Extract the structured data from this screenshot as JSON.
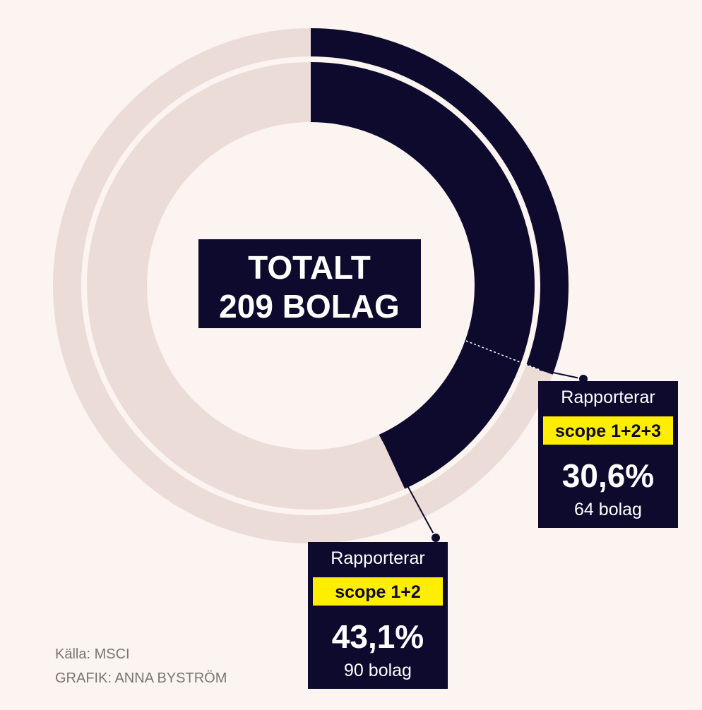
{
  "chart_data": {
    "type": "donut",
    "center_label": [
      "TOTALT",
      "209 BOLAG"
    ],
    "track_color": "#ecdcd8",
    "rings": [
      {
        "label": "Rapporterar",
        "highlight": "scope 1+2+3",
        "value": 30.6,
        "value_label": "30,6%",
        "count_label": "64 bolag",
        "color": "#0d0a2e"
      },
      {
        "label": "Rapporterar",
        "highlight": "scope 1+2",
        "value": 43.1,
        "value_label": "43,1%",
        "count_label": "90 bolag",
        "color": "#0d0a2e"
      }
    ],
    "source": "Källa: MSCI",
    "credit": "GRAFIK: ANNA BYSTRÖM"
  }
}
